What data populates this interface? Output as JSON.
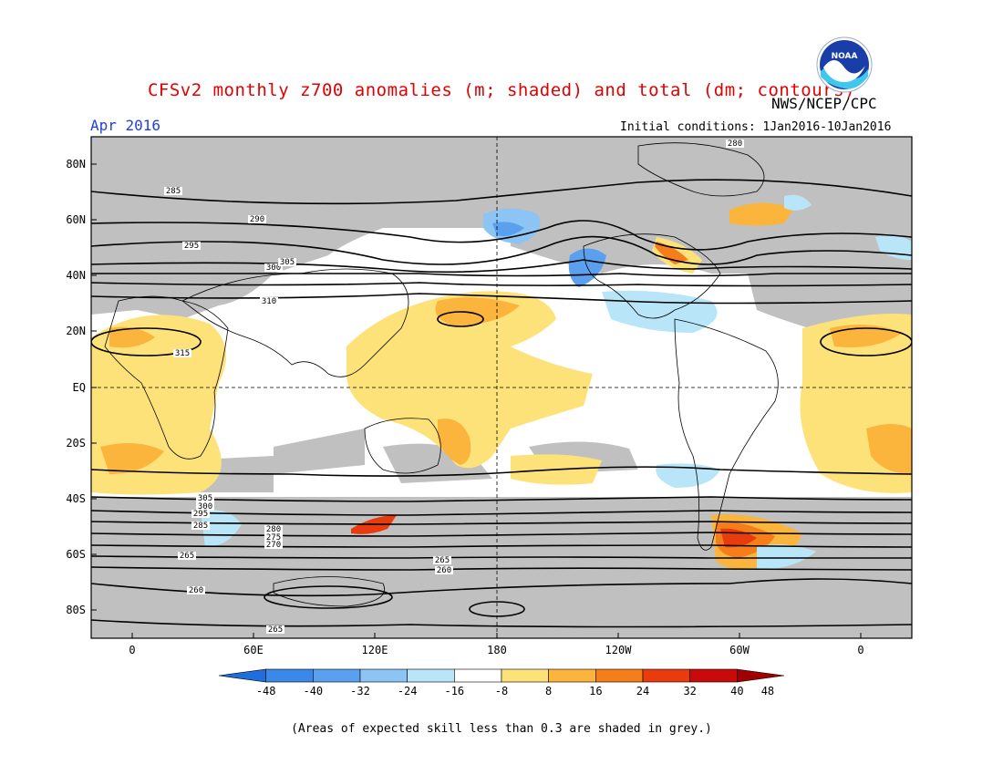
{
  "header": {
    "title": "CFSv2 monthly z700 anomalies (m; shaded) and total (dm; contours)",
    "month": "Apr 2016",
    "agency": "NWS/NCEP/CPC",
    "initial_conditions": "Initial conditions: 1Jan2016-10Jan2016",
    "logo_text": "NOAA"
  },
  "map": {
    "lat_labels": [
      "80N",
      "60N",
      "40N",
      "20N",
      "EQ",
      "20S",
      "40S",
      "60S",
      "80S"
    ],
    "lon_labels": [
      "0",
      "60E",
      "120E",
      "180",
      "120W",
      "60W",
      "0"
    ],
    "contour_labels": [
      "280",
      "285",
      "290",
      "295",
      "300",
      "305",
      "310",
      "315",
      "305",
      "300",
      "295",
      "285",
      "280",
      "275",
      "270",
      "265",
      "260",
      "265",
      "260",
      "265"
    ],
    "skill_mask_color": "#c0c0c0"
  },
  "colorbar": {
    "tick_labels": [
      "-48",
      "-40",
      "-32",
      "-24",
      "-16",
      "-8",
      "8",
      "16",
      "24",
      "32",
      "40",
      "48"
    ],
    "colors": [
      "#1e6ee0",
      "#3a88e8",
      "#5aa0ee",
      "#8cc4f4",
      "#b8e6f8",
      "#ffffff",
      "#fde27a",
      "#fbb43c",
      "#f57d1a",
      "#e83c0e",
      "#c80a0a",
      "#a00000"
    ]
  },
  "footnote": "(Areas of expected skill less than 0.3 are shaded in grey.)"
}
